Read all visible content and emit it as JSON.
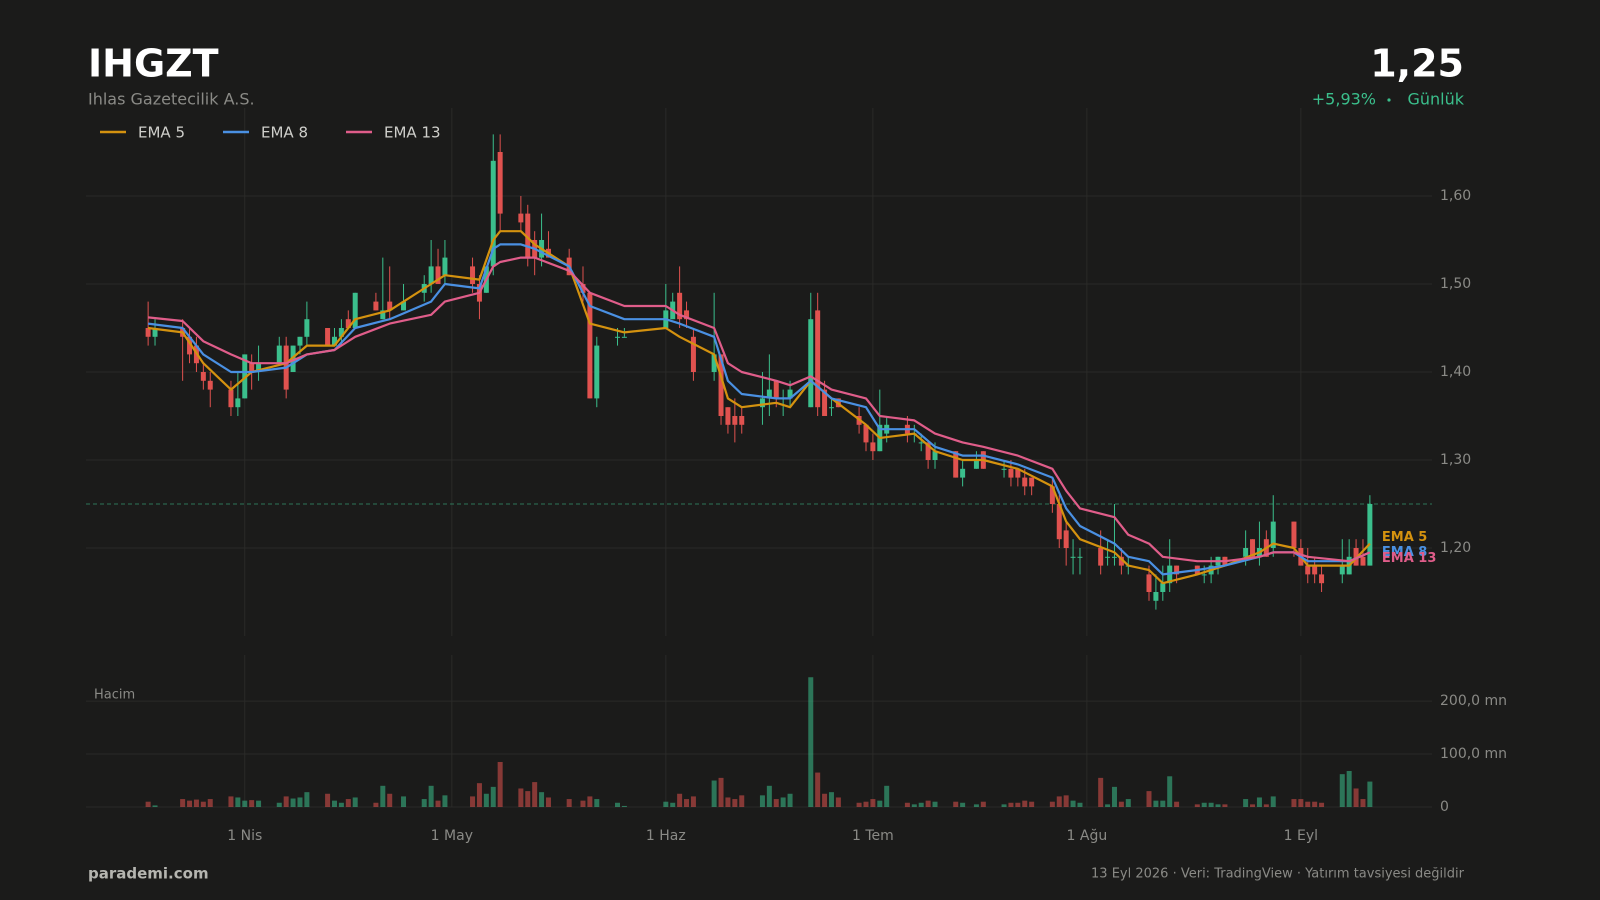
{
  "chart_data": {
    "type": "candlestick",
    "title": "IHGZT",
    "subtitle": "Ihlas Gazetecilik A.S.",
    "price": {
      "value": 1.25,
      "label": "1,25"
    },
    "change": "+5,93%",
    "period": "Günlük",
    "up_color": "#3bbf8c",
    "down_color": "#e0524f",
    "grid": true,
    "legend": "top-left",
    "xlim": [
      "2026-03-09",
      "2026-09-20"
    ],
    "xticks": [
      {
        "value": "2026-04-01",
        "label": "1 Nis"
      },
      {
        "value": "2026-05-01",
        "label": "1 May"
      },
      {
        "value": "2026-06-01",
        "label": "1 Haz"
      },
      {
        "value": "2026-07-01",
        "label": "1 Tem"
      },
      {
        "value": "2026-08-01",
        "label": "1 Ağu"
      },
      {
        "value": "2026-09-01",
        "label": "1 Eyl"
      }
    ],
    "ylim": [
      1.1,
      1.7
    ],
    "yticks": [
      {
        "value": 1.2,
        "label": "1,20"
      },
      {
        "value": 1.3,
        "label": "1,30"
      },
      {
        "value": 1.4,
        "label": "1,40"
      },
      {
        "value": 1.5,
        "label": "1,50"
      },
      {
        "value": 1.6,
        "label": "1,60"
      }
    ],
    "x": [
      "2026-03-18",
      "2026-03-19",
      "2026-03-23",
      "2026-03-24",
      "2026-03-25",
      "2026-03-26",
      "2026-03-27",
      "2026-03-30",
      "2026-03-31",
      "2026-04-01",
      "2026-04-02",
      "2026-04-03",
      "2026-04-06",
      "2026-04-07",
      "2026-04-08",
      "2026-04-09",
      "2026-04-10",
      "2026-04-13",
      "2026-04-14",
      "2026-04-15",
      "2026-04-16",
      "2026-04-17",
      "2026-04-20",
      "2026-04-21",
      "2026-04-22",
      "2026-04-24",
      "2026-04-27",
      "2026-04-28",
      "2026-04-29",
      "2026-04-30",
      "2026-05-04",
      "2026-05-05",
      "2026-05-06",
      "2026-05-07",
      "2026-05-08",
      "2026-05-11",
      "2026-05-12",
      "2026-05-13",
      "2026-05-14",
      "2026-05-15",
      "2026-05-18",
      "2026-05-20",
      "2026-05-21",
      "2026-05-22",
      "2026-05-25",
      "2026-05-26",
      "2026-06-01",
      "2026-06-02",
      "2026-06-03",
      "2026-06-04",
      "2026-06-05",
      "2026-06-08",
      "2026-06-09",
      "2026-06-10",
      "2026-06-11",
      "2026-06-12",
      "2026-06-15",
      "2026-06-16",
      "2026-06-17",
      "2026-06-18",
      "2026-06-19",
      "2026-06-22",
      "2026-06-23",
      "2026-06-24",
      "2026-06-25",
      "2026-06-26",
      "2026-06-29",
      "2026-06-30",
      "2026-07-01",
      "2026-07-02",
      "2026-07-03",
      "2026-07-06",
      "2026-07-07",
      "2026-07-08",
      "2026-07-09",
      "2026-07-10",
      "2026-07-13",
      "2026-07-14",
      "2026-07-16",
      "2026-07-17",
      "2026-07-20",
      "2026-07-21",
      "2026-07-22",
      "2026-07-23",
      "2026-07-24",
      "2026-07-27",
      "2026-07-28",
      "2026-07-29",
      "2026-07-30",
      "2026-07-31",
      "2026-08-03",
      "2026-08-04",
      "2026-08-05",
      "2026-08-06",
      "2026-08-07",
      "2026-08-10",
      "2026-08-11",
      "2026-08-12",
      "2026-08-13",
      "2026-08-14",
      "2026-08-17",
      "2026-08-18",
      "2026-08-19",
      "2026-08-20",
      "2026-08-21",
      "2026-08-24",
      "2026-08-25",
      "2026-08-26",
      "2026-08-27",
      "2026-08-28",
      "2026-08-31",
      "2026-09-01",
      "2026-09-02",
      "2026-09-03",
      "2026-09-04",
      "2026-09-07",
      "2026-09-08",
      "2026-09-09",
      "2026-09-10",
      "2026-09-11"
    ],
    "open": [
      1.45,
      1.44,
      1.45,
      1.44,
      1.43,
      1.4,
      1.39,
      1.38,
      1.36,
      1.37,
      1.41,
      1.4,
      1.41,
      1.43,
      1.4,
      1.43,
      1.44,
      1.45,
      1.43,
      1.44,
      1.46,
      1.45,
      1.48,
      1.46,
      1.48,
      1.47,
      1.49,
      1.5,
      1.52,
      1.51,
      1.52,
      1.5,
      1.49,
      1.52,
      1.65,
      1.58,
      1.58,
      1.55,
      1.53,
      1.54,
      1.53,
      1.5,
      1.49,
      1.37,
      1.44,
      1.44,
      1.45,
      1.46,
      1.49,
      1.47,
      1.44,
      1.4,
      1.42,
      1.36,
      1.35,
      1.35,
      1.36,
      1.37,
      1.39,
      1.37,
      1.37,
      1.36,
      1.47,
      1.38,
      1.36,
      1.37,
      1.35,
      1.34,
      1.32,
      1.31,
      1.33,
      1.34,
      1.33,
      1.32,
      1.32,
      1.3,
      1.31,
      1.28,
      1.29,
      1.31,
      1.29,
      1.29,
      1.29,
      1.28,
      1.28,
      1.27,
      1.25,
      1.22,
      1.19,
      1.19,
      1.2,
      1.19,
      1.19,
      1.19,
      1.18,
      1.17,
      1.14,
      1.15,
      1.16,
      1.18,
      1.18,
      1.17,
      1.17,
      1.18,
      1.19,
      1.19,
      1.21,
      1.19,
      1.21,
      1.2,
      1.23,
      1.2,
      1.18,
      1.18,
      1.17,
      1.17,
      1.17,
      1.2,
      1.19,
      1.18
    ],
    "high": [
      1.48,
      1.46,
      1.46,
      1.45,
      1.44,
      1.41,
      1.4,
      1.39,
      1.4,
      1.42,
      1.42,
      1.43,
      1.44,
      1.44,
      1.43,
      1.44,
      1.48,
      1.45,
      1.45,
      1.46,
      1.47,
      1.49,
      1.49,
      1.53,
      1.52,
      1.5,
      1.51,
      1.55,
      1.54,
      1.55,
      1.53,
      1.51,
      1.52,
      1.67,
      1.67,
      1.6,
      1.59,
      1.56,
      1.58,
      1.56,
      1.54,
      1.52,
      1.49,
      1.44,
      1.45,
      1.45,
      1.5,
      1.49,
      1.52,
      1.48,
      1.45,
      1.49,
      1.42,
      1.36,
      1.37,
      1.36,
      1.4,
      1.42,
      1.39,
      1.38,
      1.39,
      1.49,
      1.49,
      1.39,
      1.37,
      1.37,
      1.36,
      1.34,
      1.33,
      1.38,
      1.35,
      1.35,
      1.34,
      1.33,
      1.32,
      1.32,
      1.31,
      1.3,
      1.31,
      1.31,
      1.3,
      1.3,
      1.29,
      1.29,
      1.28,
      1.28,
      1.26,
      1.23,
      1.21,
      1.2,
      1.22,
      1.21,
      1.25,
      1.2,
      1.19,
      1.18,
      1.17,
      1.18,
      1.21,
      1.18,
      1.18,
      1.18,
      1.19,
      1.19,
      1.19,
      1.22,
      1.21,
      1.23,
      1.22,
      1.26,
      1.23,
      1.21,
      1.2,
      1.19,
      1.18,
      1.21,
      1.21,
      1.21,
      1.21,
      1.26
    ],
    "low": [
      1.43,
      1.43,
      1.39,
      1.41,
      1.4,
      1.38,
      1.36,
      1.35,
      1.35,
      1.37,
      1.38,
      1.39,
      1.41,
      1.37,
      1.4,
      1.42,
      1.43,
      1.43,
      1.43,
      1.43,
      1.45,
      1.45,
      1.47,
      1.46,
      1.46,
      1.47,
      1.48,
      1.49,
      1.5,
      1.5,
      1.49,
      1.46,
      1.49,
      1.51,
      1.56,
      1.56,
      1.52,
      1.51,
      1.52,
      1.53,
      1.51,
      1.48,
      1.37,
      1.36,
      1.43,
      1.44,
      1.45,
      1.46,
      1.45,
      1.45,
      1.39,
      1.39,
      1.34,
      1.33,
      1.32,
      1.33,
      1.34,
      1.35,
      1.36,
      1.35,
      1.36,
      1.36,
      1.35,
      1.35,
      1.35,
      1.36,
      1.33,
      1.31,
      1.3,
      1.31,
      1.32,
      1.32,
      1.32,
      1.31,
      1.29,
      1.29,
      1.28,
      1.27,
      1.29,
      1.29,
      1.28,
      1.27,
      1.27,
      1.26,
      1.26,
      1.24,
      1.2,
      1.18,
      1.17,
      1.17,
      1.17,
      1.18,
      1.18,
      1.17,
      1.17,
      1.14,
      1.13,
      1.14,
      1.15,
      1.16,
      1.17,
      1.16,
      1.16,
      1.17,
      1.18,
      1.18,
      1.19,
      1.18,
      1.19,
      1.19,
      1.19,
      1.18,
      1.16,
      1.16,
      1.15,
      1.16,
      1.17,
      1.18,
      1.18,
      1.18
    ],
    "close": [
      1.44,
      1.45,
      1.44,
      1.42,
      1.41,
      1.39,
      1.38,
      1.36,
      1.37,
      1.42,
      1.4,
      1.41,
      1.43,
      1.38,
      1.43,
      1.44,
      1.46,
      1.43,
      1.44,
      1.45,
      1.45,
      1.49,
      1.47,
      1.47,
      1.47,
      1.48,
      1.5,
      1.52,
      1.5,
      1.53,
      1.5,
      1.48,
      1.52,
      1.64,
      1.58,
      1.57,
      1.53,
      1.53,
      1.55,
      1.53,
      1.51,
      1.49,
      1.37,
      1.43,
      1.44,
      1.44,
      1.47,
      1.48,
      1.46,
      1.46,
      1.4,
      1.42,
      1.35,
      1.34,
      1.34,
      1.34,
      1.37,
      1.38,
      1.37,
      1.37,
      1.38,
      1.46,
      1.36,
      1.35,
      1.36,
      1.36,
      1.34,
      1.32,
      1.31,
      1.34,
      1.34,
      1.33,
      1.33,
      1.32,
      1.3,
      1.31,
      1.28,
      1.29,
      1.3,
      1.29,
      1.29,
      1.28,
      1.28,
      1.27,
      1.27,
      1.25,
      1.21,
      1.2,
      1.19,
      1.19,
      1.18,
      1.19,
      1.19,
      1.18,
      1.18,
      1.15,
      1.15,
      1.16,
      1.18,
      1.17,
      1.17,
      1.17,
      1.18,
      1.19,
      1.18,
      1.2,
      1.19,
      1.2,
      1.19,
      1.23,
      1.2,
      1.18,
      1.17,
      1.17,
      1.16,
      1.18,
      1.19,
      1.18,
      1.18,
      1.25
    ],
    "volume": {
      "label": "Hacim",
      "ylim": [
        0,
        287
      ],
      "yticks": [
        0,
        {
          "value": 100,
          "label": "100,0 mn"
        },
        {
          "value": 200,
          "label": "200,0 mn"
        }
      ],
      "values": [
        10,
        3,
        15,
        12,
        14,
        10,
        15,
        20,
        18,
        12,
        13,
        12,
        8,
        20,
        16,
        18,
        28,
        25,
        12,
        8,
        15,
        18,
        8,
        40,
        25,
        20,
        15,
        40,
        12,
        22,
        20,
        45,
        25,
        38,
        85,
        35,
        30,
        47,
        28,
        18,
        15,
        12,
        20,
        15,
        8,
        2,
        10,
        8,
        25,
        15,
        20,
        50,
        55,
        18,
        15,
        22,
        22,
        40,
        15,
        18,
        25,
        245,
        65,
        25,
        28,
        18,
        8,
        10,
        15,
        12,
        40,
        8,
        5,
        8,
        12,
        10,
        10,
        8,
        5,
        10,
        5,
        8,
        8,
        12,
        10,
        10,
        20,
        22,
        12,
        8,
        55,
        5,
        38,
        10,
        15,
        30,
        12,
        12,
        58,
        10,
        5,
        8,
        8,
        5,
        5,
        15,
        5,
        18,
        5,
        20,
        15,
        15,
        10,
        10,
        8,
        62,
        68,
        35,
        15,
        48
      ]
    },
    "line_x": [
      "2026-03-18",
      "2026-03-23",
      "2026-03-26",
      "2026-03-30",
      "2026-04-02",
      "2026-04-07",
      "2026-04-10",
      "2026-04-14",
      "2026-04-17",
      "2026-04-22",
      "2026-04-28",
      "2026-04-30",
      "2026-05-05",
      "2026-05-07",
      "2026-05-08",
      "2026-05-11",
      "2026-05-13",
      "2026-05-18",
      "2026-05-21",
      "2026-05-26",
      "2026-06-01",
      "2026-06-03",
      "2026-06-08",
      "2026-06-10",
      "2026-06-12",
      "2026-06-17",
      "2026-06-19",
      "2026-06-22",
      "2026-06-25",
      "2026-06-30",
      "2026-07-02",
      "2026-07-07",
      "2026-07-10",
      "2026-07-14",
      "2026-07-17",
      "2026-07-22",
      "2026-07-27",
      "2026-07-29",
      "2026-07-31",
      "2026-08-05",
      "2026-08-07",
      "2026-08-10",
      "2026-08-12",
      "2026-08-17",
      "2026-08-21",
      "2026-08-26",
      "2026-08-28",
      "2026-08-31",
      "2026-09-02",
      "2026-09-08",
      "2026-09-11"
    ],
    "lines": [
      {
        "name": "EMA 5",
        "color": "#d4920f",
        "values": [
          1.45,
          1.445,
          1.41,
          1.38,
          1.4,
          1.41,
          1.43,
          1.43,
          1.46,
          1.47,
          1.5,
          1.51,
          1.505,
          1.55,
          1.56,
          1.56,
          1.545,
          1.52,
          1.455,
          1.445,
          1.45,
          1.44,
          1.42,
          1.37,
          1.36,
          1.365,
          1.36,
          1.39,
          1.37,
          1.34,
          1.325,
          1.33,
          1.31,
          1.3,
          1.3,
          1.29,
          1.27,
          1.23,
          1.21,
          1.195,
          1.18,
          1.175,
          1.16,
          1.17,
          1.18,
          1.195,
          1.205,
          1.2,
          1.18,
          1.18,
          1.205
        ]
      },
      {
        "name": "EMA 8",
        "color": "#4a90e2",
        "values": [
          1.455,
          1.45,
          1.42,
          1.4,
          1.4,
          1.405,
          1.42,
          1.425,
          1.45,
          1.46,
          1.48,
          1.5,
          1.495,
          1.54,
          1.545,
          1.545,
          1.54,
          1.52,
          1.475,
          1.46,
          1.46,
          1.455,
          1.44,
          1.39,
          1.375,
          1.37,
          1.37,
          1.39,
          1.37,
          1.36,
          1.335,
          1.335,
          1.315,
          1.305,
          1.305,
          1.295,
          1.28,
          1.245,
          1.225,
          1.205,
          1.19,
          1.185,
          1.17,
          1.175,
          1.18,
          1.19,
          1.195,
          1.195,
          1.185,
          1.185,
          1.195
        ]
      },
      {
        "name": "EMA 13",
        "color": "#e05d8a",
        "values": [
          1.462,
          1.458,
          1.435,
          1.42,
          1.41,
          1.41,
          1.42,
          1.425,
          1.44,
          1.455,
          1.465,
          1.48,
          1.49,
          1.52,
          1.525,
          1.53,
          1.53,
          1.515,
          1.49,
          1.475,
          1.475,
          1.465,
          1.45,
          1.41,
          1.4,
          1.39,
          1.385,
          1.395,
          1.38,
          1.37,
          1.35,
          1.345,
          1.33,
          1.32,
          1.315,
          1.305,
          1.29,
          1.265,
          1.245,
          1.235,
          1.215,
          1.205,
          1.19,
          1.185,
          1.185,
          1.19,
          1.195,
          1.195,
          1.19,
          1.185,
          1.195
        ]
      }
    ]
  },
  "footer": {
    "site": "parademi.com",
    "note": "13 Eyl 2026  ·  Veri: TradingView  ·  Yatırım tavsiyesi değildir"
  }
}
